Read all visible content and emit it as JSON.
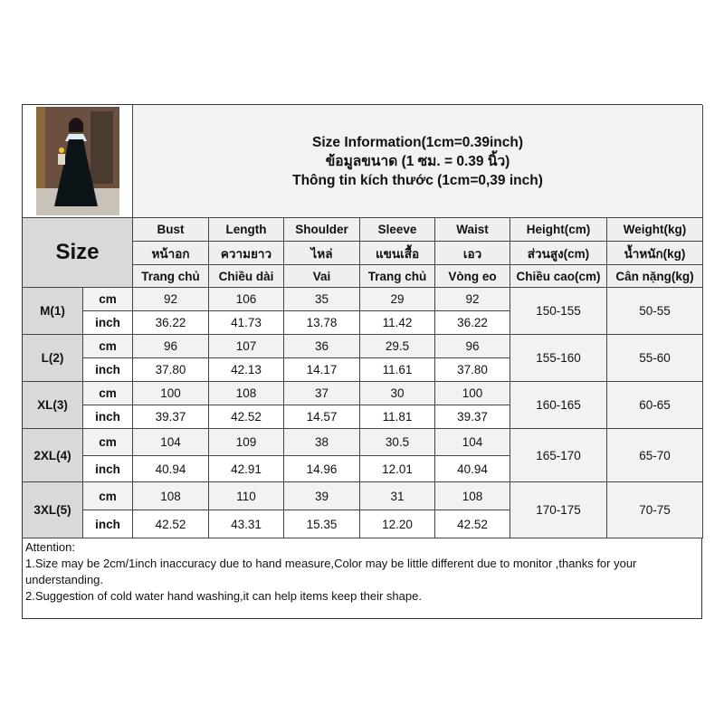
{
  "title": {
    "line1": "Size Information(1cm=0.39inch)",
    "line2": "ข้อมูลขนาด (1 ซม. = 0.39 นิ้ว)",
    "line3": "Thông tin kích thước (1cm=0,39 inch)"
  },
  "size_label": "Size",
  "headers": {
    "en": [
      "Bust",
      "Length",
      "Shoulder",
      "Sleeve",
      "Waist",
      "Height(cm)",
      "Weight(kg)"
    ],
    "th": [
      "หน้าอก",
      "ความยาว",
      "ไหล่",
      "แขนเสื้อ",
      "เอว",
      "ส่วนสูง(cm)",
      "น้ำหนัก(kg)"
    ],
    "vi": [
      "Trang chủ",
      "Chiều dài",
      "Vai",
      "Trang chủ",
      "Vòng eo",
      "Chiều cao(cm)",
      "Cân nặng(kg)"
    ]
  },
  "unit_cm": "cm",
  "unit_inch": "inch",
  "sizes": [
    {
      "name": "M(1)",
      "cm": [
        "92",
        "106",
        "35",
        "29",
        "92"
      ],
      "inch": [
        "36.22",
        "41.73",
        "13.78",
        "11.42",
        "36.22"
      ],
      "height": "150-155",
      "weight": "50-55"
    },
    {
      "name": "L(2)",
      "cm": [
        "96",
        "107",
        "36",
        "29.5",
        "96"
      ],
      "inch": [
        "37.80",
        "42.13",
        "14.17",
        "11.61",
        "37.80"
      ],
      "height": "155-160",
      "weight": "55-60"
    },
    {
      "name": "XL(3)",
      "cm": [
        "100",
        "108",
        "37",
        "30",
        "100"
      ],
      "inch": [
        "39.37",
        "42.52",
        "14.57",
        "11.81",
        "39.37"
      ],
      "height": "160-165",
      "weight": "60-65"
    },
    {
      "name": "2XL(4)",
      "cm": [
        "104",
        "109",
        "38",
        "30.5",
        "104"
      ],
      "inch": [
        "40.94",
        "42.91",
        "14.96",
        "12.01",
        "40.94"
      ],
      "height": "165-170",
      "weight": "65-70"
    },
    {
      "name": "3XL(5)",
      "cm": [
        "108",
        "110",
        "39",
        "31",
        "108"
      ],
      "inch": [
        "42.52",
        "43.31",
        "15.35",
        "12.20",
        "42.52"
      ],
      "height": "170-175",
      "weight": "70-75"
    }
  ],
  "notes": [
    "Attention:",
    "1.Size may be 2cm/1inch inaccuracy due to hand measure,Color may be little different due to monitor ,thanks for your understanding.",
    "2.Suggestion of cold water hand washing,it can help items keep their shape."
  ]
}
